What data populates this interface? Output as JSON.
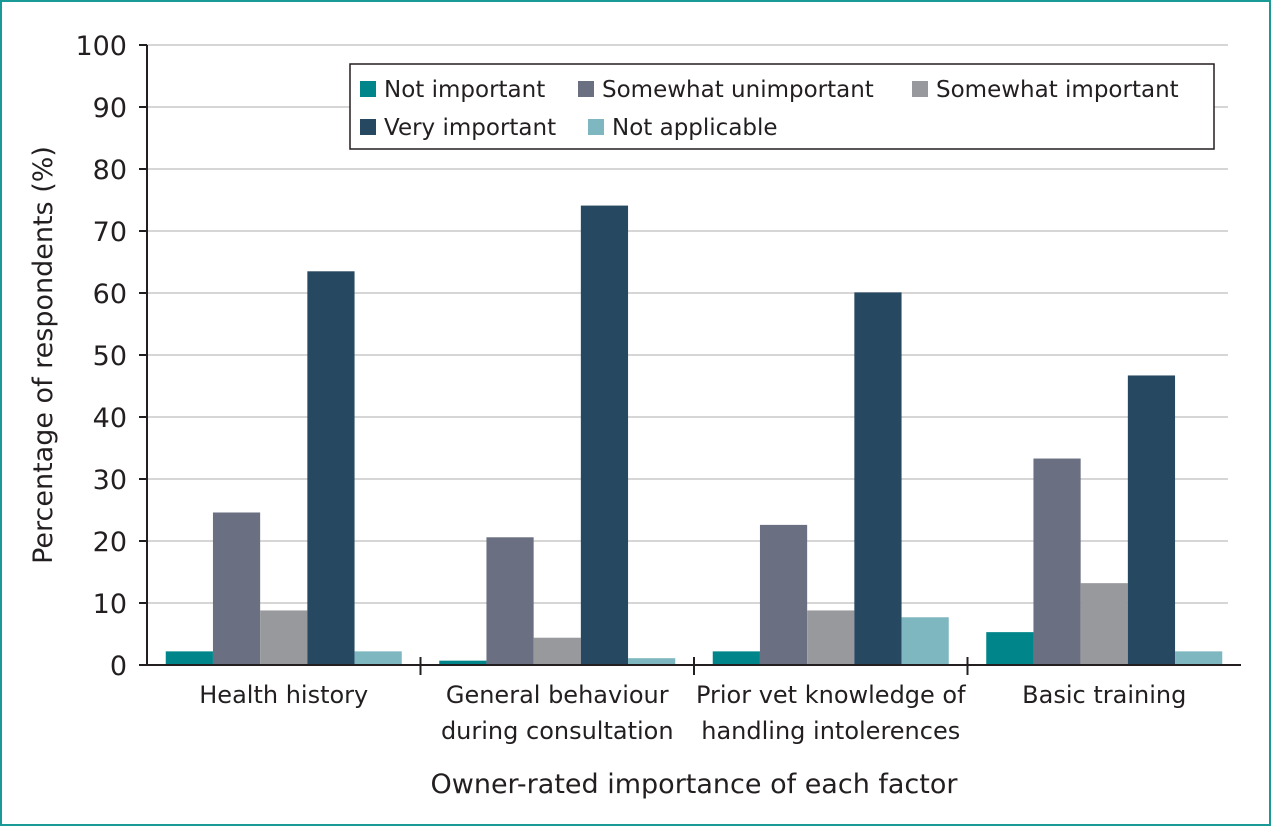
{
  "chart_data": {
    "type": "bar",
    "xlabel": "Owner-rated importance of each factor",
    "ylabel": "Percentage of respondents (%)",
    "ylim": [
      0,
      100
    ],
    "yticks": [
      0,
      10,
      20,
      30,
      40,
      50,
      60,
      70,
      80,
      90,
      100
    ],
    "grid": true,
    "legend_position": "top-right",
    "categories": [
      [
        "Health history"
      ],
      [
        "General behaviour",
        "during consultation"
      ],
      [
        "Prior vet knowledge of",
        "handling intolerences"
      ],
      [
        "Basic training"
      ]
    ],
    "series": [
      {
        "name": "Not important",
        "color": "#00868a",
        "values": [
          2.2,
          0.7,
          2.2,
          5.3
        ]
      },
      {
        "name": "Somewhat unimportant",
        "color": "#6b6f82",
        "values": [
          24.6,
          20.6,
          22.6,
          33.3
        ]
      },
      {
        "name": "Somewhat important",
        "color": "#98999c",
        "values": [
          8.8,
          4.4,
          8.8,
          13.2
        ]
      },
      {
        "name": "Very important",
        "color": "#264861",
        "values": [
          63.5,
          74.1,
          60.1,
          46.7
        ]
      },
      {
        "name": "Not applicable",
        "color": "#7fb7c0",
        "values": [
          2.2,
          1.1,
          7.7,
          2.2
        ]
      }
    ]
  }
}
